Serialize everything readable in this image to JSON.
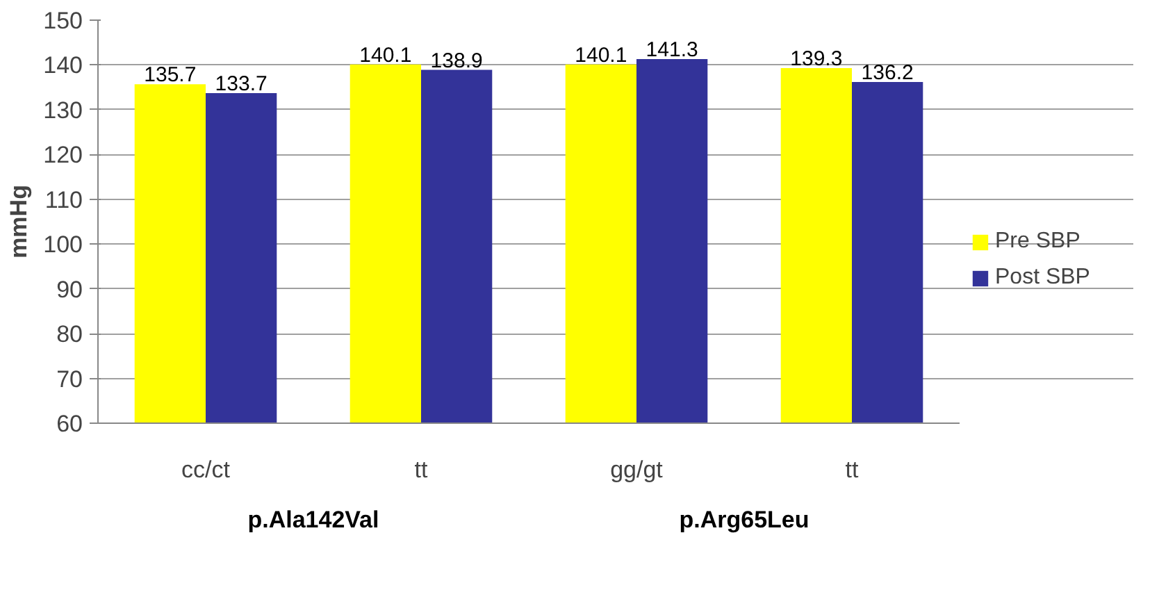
{
  "chart_data": {
    "type": "bar",
    "ylabel": "mmHg",
    "categories": [
      "cc/ct",
      "tt",
      "gg/gt",
      "tt"
    ],
    "series": [
      {
        "name": "Pre SBP",
        "color": "#ffff00",
        "values": [
          135.7,
          140.1,
          140.1,
          139.3
        ]
      },
      {
        "name": "Post SBP",
        "color": "#333399",
        "values": [
          133.7,
          138.9,
          141.3,
          136.2
        ]
      }
    ],
    "ylim": [
      60,
      150
    ],
    "yticks": [
      60,
      70,
      80,
      90,
      100,
      110,
      120,
      130,
      140,
      150
    ],
    "grid": "y",
    "legend": "right",
    "data_labels": true,
    "annotations": [
      "p.Ala142Val",
      "p.Arg65Leu"
    ]
  }
}
